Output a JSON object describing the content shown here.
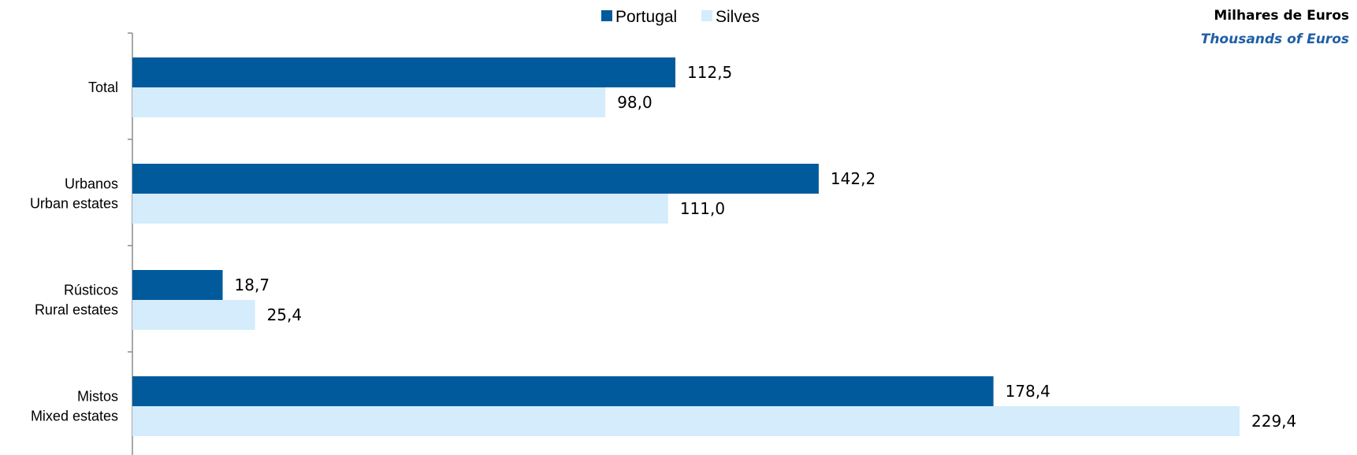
{
  "units": {
    "pt": "Milhares de Euros",
    "en": "Thousands of Euros"
  },
  "chart_data": {
    "type": "bar",
    "orientation": "horizontal",
    "categories": [
      [
        "Total"
      ],
      [
        "Urbanos",
        "Urban estates"
      ],
      [
        "Rústicos",
        "Rural estates"
      ],
      [
        "Mistos",
        "Mixed estates"
      ]
    ],
    "series": [
      {
        "name": "Portugal",
        "color": "#005a9c",
        "values": [
          112.5,
          142.2,
          18.7,
          178.4
        ],
        "labels": [
          "112,5",
          "142,2",
          "18,7",
          "178,4"
        ]
      },
      {
        "name": "Silves",
        "color": "#d4ecfb",
        "values": [
          98.0,
          111.0,
          25.4,
          229.4
        ],
        "labels": [
          "98,0",
          "111,0",
          "25,4",
          "229,4"
        ]
      }
    ],
    "xlim": [
      0,
      230
    ],
    "grid": false,
    "legend": "top-center"
  }
}
